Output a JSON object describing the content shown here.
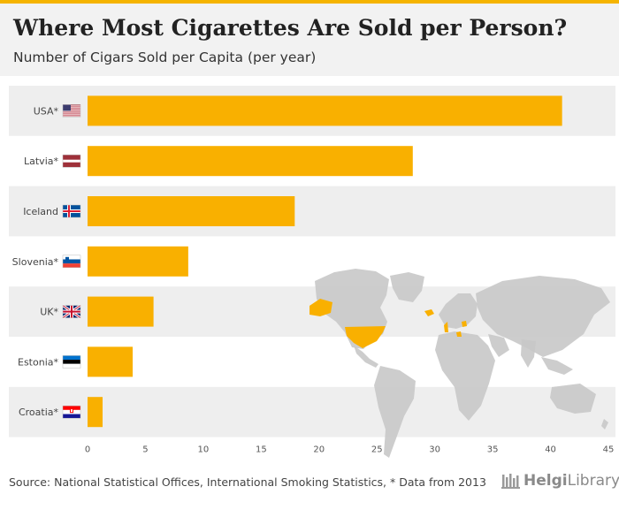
{
  "header": {
    "title": "Where Most Cigarettes Are Sold per Person?",
    "subtitle": "Number of Cigars Sold per Capita (per year)"
  },
  "chart_data": {
    "type": "bar",
    "orientation": "horizontal",
    "title": "Where Most Cigarettes Are Sold per Person?",
    "subtitle": "Number of Cigars Sold per Capita (per year)",
    "categories": [
      "USA*",
      "Latvia*",
      "Iceland",
      "Slovenia*",
      "UK*",
      "Estonia*",
      "Croatia*"
    ],
    "values": [
      41,
      28.1,
      17.9,
      8.7,
      5.7,
      3.9,
      1.3
    ],
    "flags": [
      "usa",
      "latvia",
      "iceland",
      "slovenia",
      "uk",
      "estonia",
      "croatia"
    ],
    "xlim": [
      0,
      45
    ],
    "xticks": [
      0,
      5,
      10,
      15,
      20,
      25,
      30,
      35,
      40,
      45
    ],
    "xlabel": "",
    "ylabel": "",
    "bar_color": "#f9b000",
    "stripe_color": "#eeeeee",
    "map_land_color": "#c8c8c8",
    "map_highlight_color": "#f9b000",
    "grid": true
  },
  "footer": {
    "source": "Source: National Statistical Offices, International Smoking Statistics, * Data from 2013",
    "logo_bold": "Helgi",
    "logo_rest": "Library."
  }
}
